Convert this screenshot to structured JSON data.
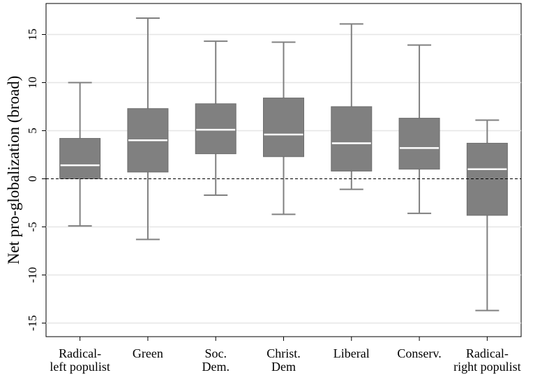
{
  "chart_data": {
    "type": "box",
    "ylabel": "Net pro-globalization (broad)",
    "ylim": [
      -17,
      18
    ],
    "yticks": [
      15,
      10,
      5,
      0,
      -5,
      -10,
      -15
    ],
    "ytick_labels": [
      "15",
      "10",
      "5",
      "0",
      "-5",
      "-10",
      "-15"
    ],
    "grid": true,
    "reference_line": {
      "y": 0,
      "style": "dashed"
    },
    "box_color": "#808080",
    "median_color": "#ffffff",
    "categories": [
      {
        "label": [
          "Radical-",
          "left populist"
        ],
        "min": -4.9,
        "q1": 0.0,
        "median": 1.4,
        "q3": 4.2,
        "max": 10.0
      },
      {
        "label": [
          "Green"
        ],
        "min": -6.3,
        "q1": 0.7,
        "median": 4.0,
        "q3": 7.3,
        "max": 16.7
      },
      {
        "label": [
          "Soc.",
          "Dem."
        ],
        "min": -1.7,
        "q1": 2.6,
        "median": 5.1,
        "q3": 7.8,
        "max": 14.3
      },
      {
        "label": [
          "Christ.",
          "Dem"
        ],
        "min": -3.7,
        "q1": 2.3,
        "median": 4.6,
        "q3": 8.4,
        "max": 14.2
      },
      {
        "label": [
          "Liberal"
        ],
        "min": -1.1,
        "q1": 0.8,
        "median": 3.7,
        "q3": 7.5,
        "max": 16.1
      },
      {
        "label": [
          "Conserv."
        ],
        "min": -3.6,
        "q1": 1.0,
        "median": 3.2,
        "q3": 6.3,
        "max": 13.9
      },
      {
        "label": [
          "Radical-",
          "right populist"
        ],
        "min": -13.7,
        "q1": -3.8,
        "median": 1.0,
        "q3": 3.7,
        "max": 6.1
      }
    ]
  }
}
